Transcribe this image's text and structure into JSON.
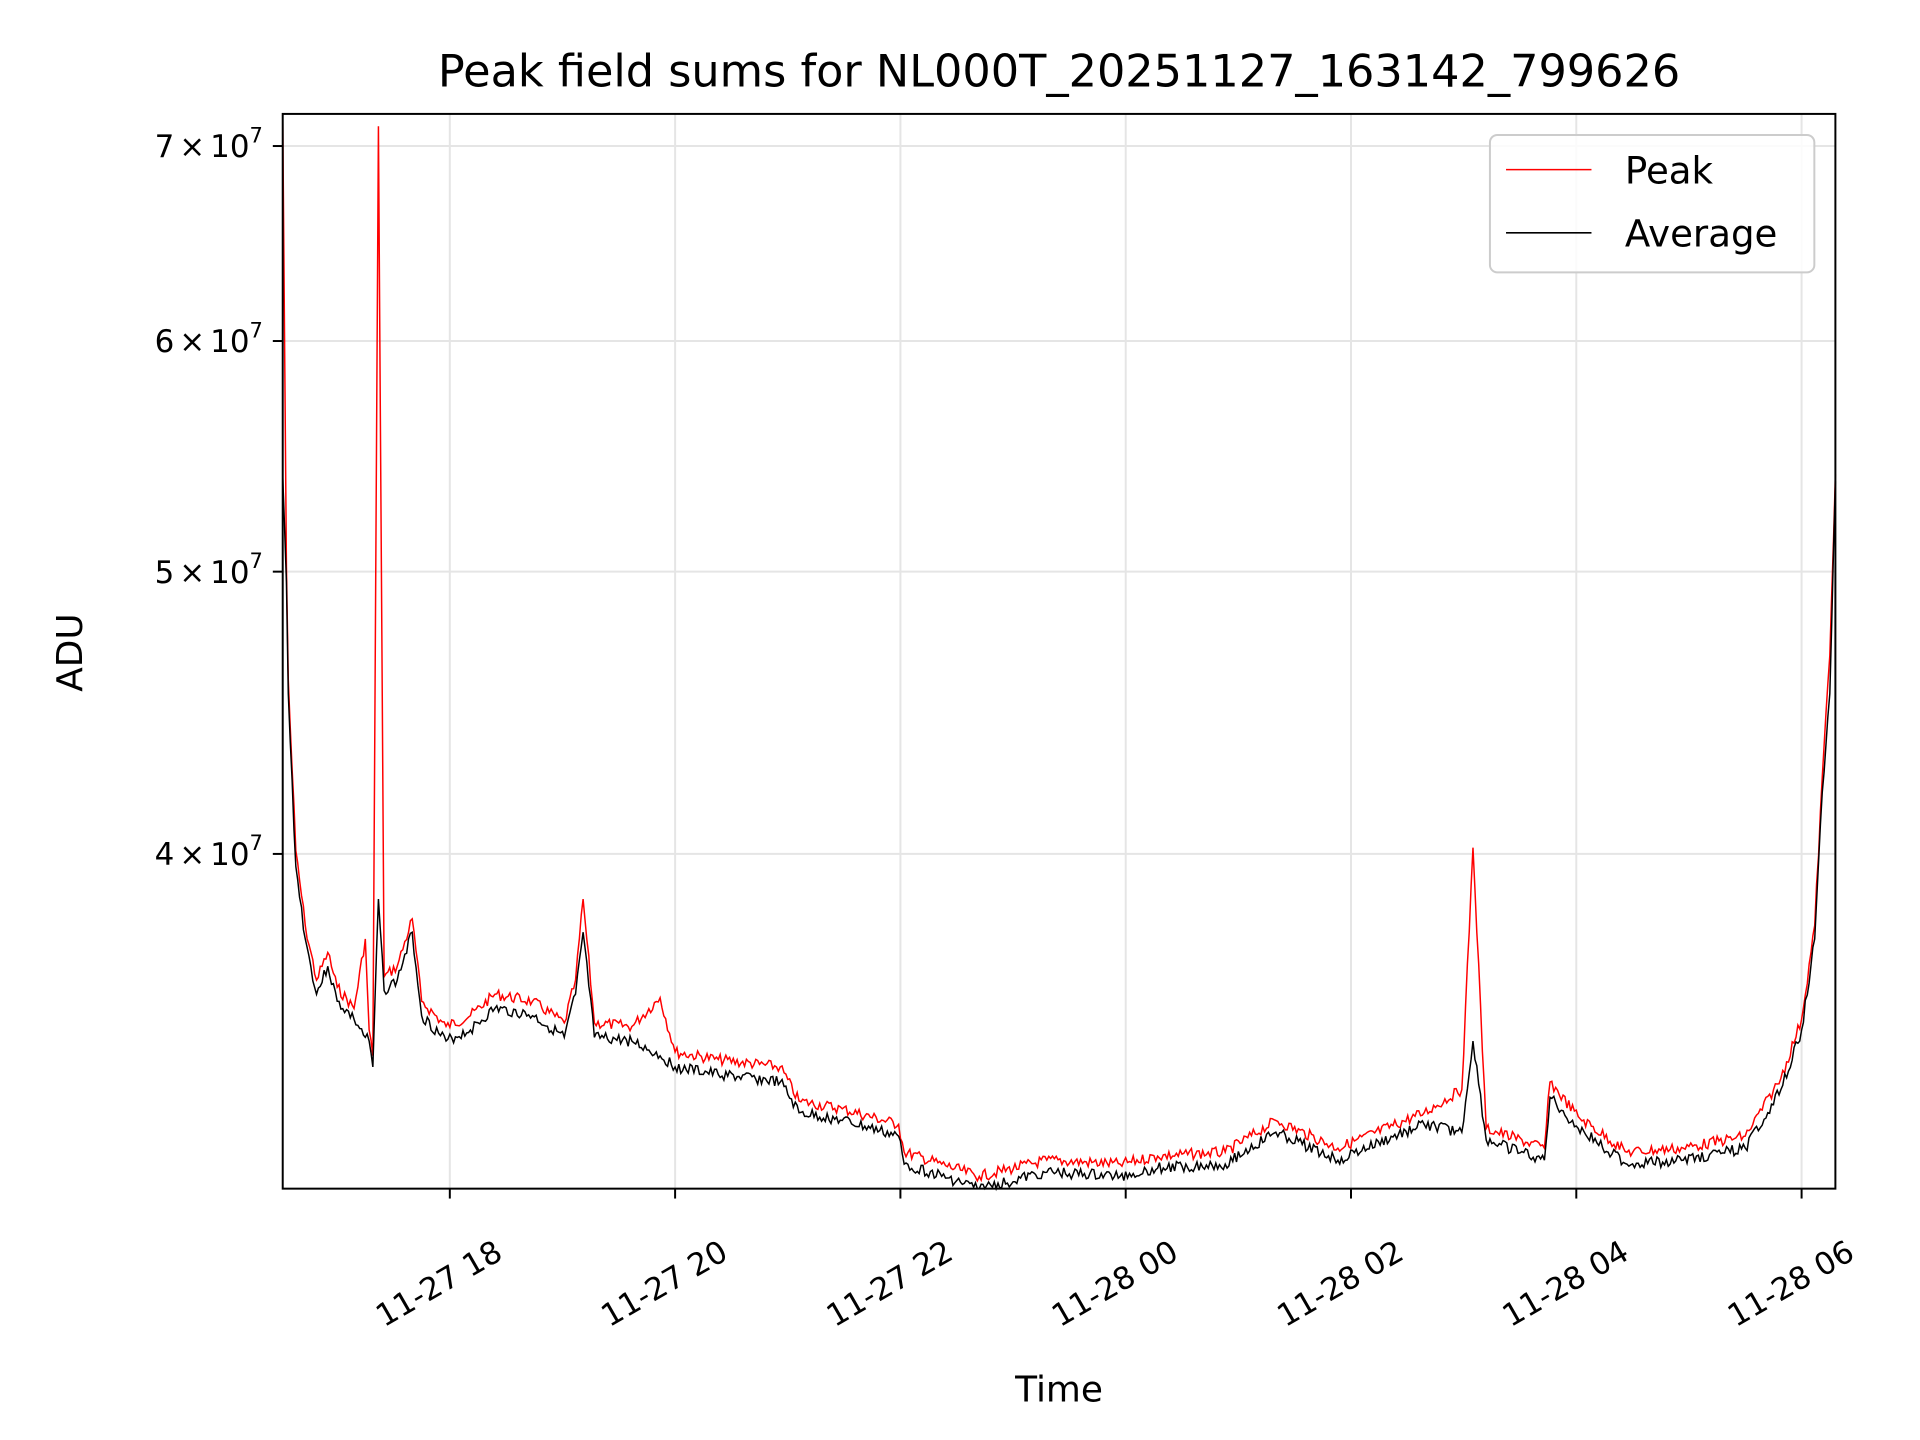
{
  "chart_data": {
    "type": "line",
    "title": "Peak field sums for NL000T_20251127_163142_799626",
    "xlabel": "Time",
    "ylabel": "ADU",
    "yscale": "log",
    "ylim": [
      30700000,
      71800000
    ],
    "xlim": [
      "11-27 16:31",
      "11-28 06:18"
    ],
    "grid": true,
    "legend_position": "top-right",
    "x_ticks": [
      "11-27 18",
      "11-27 20",
      "11-27 22",
      "11-28 00",
      "11-28 02",
      "11-28 04",
      "11-28 06"
    ],
    "y_ticks": [
      {
        "value": 40000000,
        "mantissa": "4",
        "times": "×",
        "base": "10",
        "exp": "7"
      },
      {
        "value": 50000000,
        "mantissa": "5",
        "times": "×",
        "base": "10",
        "exp": "7"
      },
      {
        "value": 60000000,
        "mantissa": "6",
        "times": "×",
        "base": "10",
        "exp": "7"
      },
      {
        "value": 70000000,
        "mantissa": "7",
        "times": "×",
        "base": "10",
        "exp": "7"
      }
    ],
    "series": [
      {
        "name": "Peak",
        "color": "#ff0000"
      },
      {
        "name": "Average",
        "color": "#000000"
      }
    ],
    "points_columns": [
      "time",
      "average",
      "peak"
    ],
    "points": [
      [
        "11-27 16:31",
        53900000,
        71800000
      ],
      [
        "11-27 16:33",
        49600000,
        50200000
      ],
      [
        "11-27 16:34",
        45400000,
        45900000
      ],
      [
        "11-27 16:35",
        43700000,
        44200000
      ],
      [
        "11-27 16:38",
        39600000,
        40100000
      ],
      [
        "11-27 16:43",
        37400000,
        37800000
      ],
      [
        "11-27 16:49",
        35800000,
        36200000
      ],
      [
        "11-27 16:55",
        36600000,
        37000000
      ],
      [
        "11-27 17:00",
        35600000,
        36000000
      ],
      [
        "11-27 17:09",
        35100000,
        35400000
      ],
      [
        "11-27 17:15",
        34600000,
        37400000
      ],
      [
        "11-27 17:17",
        34500000,
        34800000
      ],
      [
        "11-27 17:19",
        33800000,
        34100000
      ],
      [
        "11-27 17:22",
        38600000,
        71100000
      ],
      [
        "11-27 17:25",
        35900000,
        36300000
      ],
      [
        "11-27 17:32",
        36200000,
        36600000
      ],
      [
        "11-27 17:40",
        37600000,
        38000000
      ],
      [
        "11-27 17:45",
        35200000,
        35600000
      ],
      [
        "11-27 17:58",
        34500000,
        34900000
      ],
      [
        "11-27 18:11",
        34800000,
        35200000
      ],
      [
        "11-27 18:24",
        35400000,
        35800000
      ],
      [
        "11-27 18:44",
        35200000,
        35600000
      ],
      [
        "11-27 19:01",
        34600000,
        35000000
      ],
      [
        "11-27 19:07",
        35800000,
        36200000
      ],
      [
        "11-27 19:11",
        37600000,
        38600000
      ],
      [
        "11-27 19:17",
        34600000,
        35000000
      ],
      [
        "11-27 19:37",
        34500000,
        34900000
      ],
      [
        "11-27 19:52",
        34100000,
        35700000
      ],
      [
        "11-27 20:00",
        33800000,
        34200000
      ],
      [
        "11-27 20:23",
        33600000,
        34000000
      ],
      [
        "11-27 20:56",
        33400000,
        33800000
      ],
      [
        "11-27 21:06",
        32600000,
        32900000
      ],
      [
        "11-27 21:29",
        32400000,
        32700000
      ],
      [
        "11-27 21:59",
        32000000,
        32300000
      ],
      [
        "11-27 22:02",
        31300000,
        31600000
      ],
      [
        "11-27 22:22",
        31000000,
        31300000
      ],
      [
        "11-27 22:42",
        30700000,
        31000000
      ],
      [
        "11-27 23:18",
        31100000,
        31400000
      ],
      [
        "11-27 23:57",
        31000000,
        31300000
      ],
      [
        "11-28 00:17",
        31200000,
        31500000
      ],
      [
        "11-28 00:53",
        31300000,
        31600000
      ],
      [
        "11-28 01:20",
        32100000,
        32400000
      ],
      [
        "11-28 01:53",
        31400000,
        31700000
      ],
      [
        "11-28 02:39",
        32300000,
        32600000
      ],
      [
        "11-28 02:59",
        32100000,
        33200000
      ],
      [
        "11-28 03:05",
        34500000,
        40200000
      ],
      [
        "11-28 03:12",
        31900000,
        32200000
      ],
      [
        "11-28 03:43",
        31400000,
        31700000
      ],
      [
        "11-28 03:46",
        33000000,
        33400000
      ],
      [
        "11-28 04:01",
        32200000,
        32500000
      ],
      [
        "11-28 04:27",
        31300000,
        31600000
      ],
      [
        "11-28 04:57",
        31400000,
        31700000
      ],
      [
        "11-28 05:30",
        31700000,
        32000000
      ],
      [
        "11-28 05:49",
        33200000,
        33500000
      ],
      [
        "11-28 06:00",
        34800000,
        35100000
      ],
      [
        "11-28 06:07",
        37400000,
        37800000
      ],
      [
        "11-28 06:11",
        42000000,
        42500000
      ],
      [
        "11-28 06:15",
        45400000,
        46800000
      ],
      [
        "11-28 06:18",
        53700000,
        54000000
      ]
    ]
  }
}
